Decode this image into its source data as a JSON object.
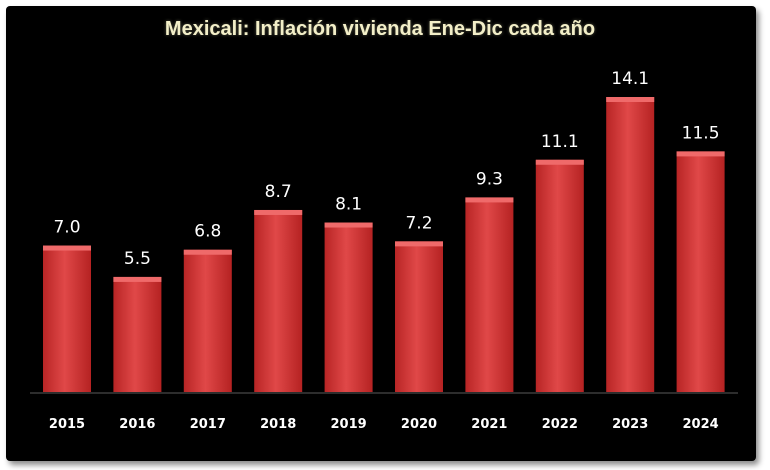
{
  "chart_data": {
    "type": "bar",
    "title": "Mexicali: Inflación vivienda Ene-Dic cada año",
    "categories": [
      "2015",
      "2016",
      "2017",
      "2018",
      "2019",
      "2020",
      "2021",
      "2022",
      "2023",
      "2024"
    ],
    "values": [
      7.0,
      5.5,
      6.8,
      8.7,
      8.1,
      7.2,
      9.3,
      11.1,
      14.1,
      11.5
    ],
    "value_labels": [
      "7.0",
      "5.5",
      "6.8",
      "8.7",
      "8.1",
      "7.2",
      "9.3",
      "11.1",
      "14.1",
      "11.5"
    ],
    "xlabel": "",
    "ylabel": "",
    "ylim": [
      0,
      14.1
    ],
    "grid": false,
    "legend": "none",
    "colors": {
      "bar": "#d93a3a",
      "bar_top": "#ef6a6a",
      "background": "#000000",
      "text": "#ffffff",
      "title": "#f3efc8"
    }
  }
}
